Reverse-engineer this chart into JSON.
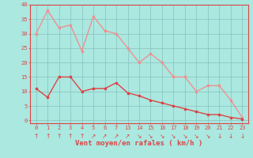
{
  "x_indices": [
    0,
    1,
    2,
    3,
    4,
    5,
    6,
    7,
    8,
    9,
    10,
    11,
    12,
    13,
    14,
    15,
    16,
    17,
    18
  ],
  "x_labels": [
    "0",
    "1",
    "2",
    "3",
    "4",
    "5",
    "6",
    "7",
    "13",
    "14",
    "15",
    "16",
    "17",
    "18",
    "19",
    "20",
    "21",
    "22",
    "23"
  ],
  "mean_values": [
    11,
    8,
    15,
    15,
    10,
    11,
    11,
    13,
    9.5,
    8.5,
    7,
    6,
    5,
    4,
    3,
    2,
    2,
    1,
    0.5
  ],
  "gust_values": [
    30,
    38,
    32,
    33,
    24,
    36,
    31,
    30,
    25,
    20,
    23,
    20,
    15,
    15,
    10,
    12,
    12,
    7,
    1
  ],
  "ylabel_ticks": [
    0,
    5,
    10,
    15,
    20,
    25,
    30,
    35,
    40
  ],
  "ylim": [
    -1,
    40
  ],
  "xlim": [
    -0.5,
    18.5
  ],
  "mean_color": "#dd4444",
  "gust_color": "#f09090",
  "bg_color": "#aae8e0",
  "grid_color": "#88bbbb",
  "xlabel": "Vent moyen/en rafales ( km/h )"
}
